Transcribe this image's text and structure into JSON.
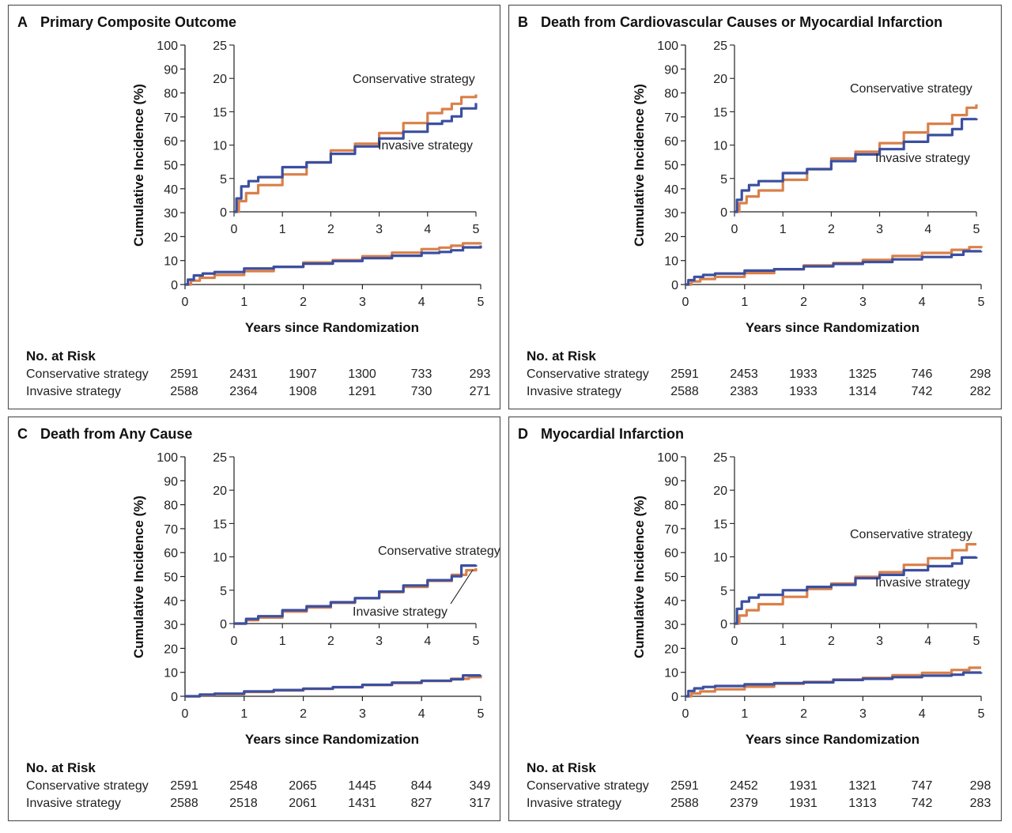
{
  "colors": {
    "conservative": "#D9804A",
    "invasive": "#3B4FA0",
    "frame": "#555555",
    "axis": "#222222"
  },
  "x_axis_label": "Years since Randomization",
  "y_axis_label": "Cumulative Incidence (%)",
  "risk_heading": "No. at Risk",
  "chart_data": [
    {
      "type": "line",
      "panel_letter": "A",
      "title": "Primary Composite Outcome",
      "xlabel": "Years since Randomization",
      "ylabel": "Cumulative Incidence (%)",
      "xlim": [
        0,
        5
      ],
      "ylim": [
        0,
        100
      ],
      "inset": {
        "xlim": [
          0,
          5
        ],
        "ylim": [
          0,
          25
        ],
        "x_ticks": [
          0,
          1,
          2,
          3,
          4,
          5
        ],
        "y_ticks": [
          0,
          5,
          10,
          15,
          20,
          25
        ]
      },
      "x_ticks": [
        0,
        1,
        2,
        3,
        4,
        5
      ],
      "y_ticks": [
        0,
        10,
        20,
        30,
        40,
        50,
        60,
        70,
        80,
        90,
        100
      ],
      "series": [
        {
          "name": "Conservative strategy",
          "x": [
            0,
            0.1,
            0.25,
            0.5,
            1.0,
            1.5,
            2.0,
            2.5,
            3.0,
            3.5,
            4.0,
            4.3,
            4.5,
            4.7,
            5.0
          ],
          "values": [
            0,
            1.6,
            2.8,
            4.0,
            5.6,
            7.4,
            9.2,
            10.2,
            11.8,
            13.3,
            14.8,
            15.4,
            16.2,
            17.2,
            17.6
          ]
        },
        {
          "name": "Invasive strategy",
          "x": [
            0,
            0.05,
            0.15,
            0.3,
            0.5,
            1.0,
            1.5,
            2.0,
            2.5,
            3.0,
            3.5,
            4.0,
            4.3,
            4.5,
            4.7,
            5.0
          ],
          "values": [
            0,
            2.0,
            3.8,
            4.6,
            5.2,
            6.7,
            7.4,
            8.7,
            9.8,
            11.0,
            12.0,
            13.2,
            13.6,
            14.3,
            15.5,
            16.3
          ]
        }
      ],
      "risk_table": {
        "rows": [
          {
            "label": "Conservative strategy",
            "values": [
              "2591",
              "2431",
              "1907",
              "1300",
              "733",
              "293"
            ]
          },
          {
            "label": "Invasive strategy",
            "values": [
              "2588",
              "2364",
              "1908",
              "1291",
              "730",
              "271"
            ]
          }
        ]
      }
    },
    {
      "type": "line",
      "panel_letter": "B",
      "title": "Death from Cardiovascular Causes or Myocardial Infarction",
      "xlabel": "Years since Randomization",
      "ylabel": "Cumulative Incidence (%)",
      "xlim": [
        0,
        5
      ],
      "ylim": [
        0,
        100
      ],
      "inset": {
        "xlim": [
          0,
          5
        ],
        "ylim": [
          0,
          25
        ],
        "x_ticks": [
          0,
          1,
          2,
          3,
          4,
          5
        ],
        "y_ticks": [
          0,
          5,
          10,
          15,
          20,
          25
        ]
      },
      "x_ticks": [
        0,
        1,
        2,
        3,
        4,
        5
      ],
      "y_ticks": [
        0,
        10,
        20,
        30,
        40,
        50,
        60,
        70,
        80,
        90,
        100
      ],
      "series": [
        {
          "name": "Conservative strategy",
          "x": [
            0,
            0.1,
            0.25,
            0.5,
            1.0,
            1.5,
            2.0,
            2.5,
            3.0,
            3.5,
            4.0,
            4.5,
            4.8,
            5.0
          ],
          "values": [
            0,
            1.3,
            2.3,
            3.2,
            4.8,
            6.4,
            8.0,
            9.0,
            10.3,
            11.9,
            13.2,
            14.5,
            15.6,
            16.1
          ]
        },
        {
          "name": "Invasive strategy",
          "x": [
            0,
            0.05,
            0.15,
            0.3,
            0.5,
            1.0,
            1.5,
            2.0,
            2.5,
            3.0,
            3.5,
            4.0,
            4.5,
            4.7,
            5.0
          ],
          "values": [
            0,
            1.8,
            3.2,
            4.0,
            4.6,
            5.8,
            6.4,
            7.6,
            8.6,
            9.4,
            10.5,
            11.5,
            12.4,
            13.9,
            14.0
          ]
        }
      ],
      "risk_table": {
        "rows": [
          {
            "label": "Conservative strategy",
            "values": [
              "2591",
              "2453",
              "1933",
              "1325",
              "746",
              "298"
            ]
          },
          {
            "label": "Invasive strategy",
            "values": [
              "2588",
              "2383",
              "1933",
              "1314",
              "742",
              "282"
            ]
          }
        ]
      }
    },
    {
      "type": "line",
      "panel_letter": "C",
      "title": "Death from Any Cause",
      "xlabel": "Years since Randomization",
      "ylabel": "Cumulative Incidence (%)",
      "xlim": [
        0,
        5
      ],
      "ylim": [
        0,
        100
      ],
      "inset": {
        "xlim": [
          0,
          5
        ],
        "ylim": [
          0,
          25
        ],
        "x_ticks": [
          0,
          1,
          2,
          3,
          4,
          5
        ],
        "y_ticks": [
          0,
          5,
          10,
          15,
          20,
          25
        ]
      },
      "x_ticks": [
        0,
        1,
        2,
        3,
        4,
        5
      ],
      "y_ticks": [
        0,
        10,
        20,
        30,
        40,
        50,
        60,
        70,
        80,
        90,
        100
      ],
      "series": [
        {
          "name": "Conservative strategy",
          "x": [
            0,
            0.25,
            0.5,
            1.0,
            1.5,
            2.0,
            2.5,
            3.0,
            3.5,
            4.0,
            4.5,
            4.8,
            5.0
          ],
          "values": [
            0,
            0.5,
            0.9,
            1.8,
            2.4,
            3.1,
            3.8,
            4.7,
            5.5,
            6.4,
            7.3,
            8.0,
            8.3
          ]
        },
        {
          "name": "Invasive strategy",
          "x": [
            0,
            0.25,
            0.5,
            1.0,
            1.5,
            2.0,
            2.5,
            3.0,
            3.5,
            4.0,
            4.5,
            4.7,
            5.0
          ],
          "values": [
            0,
            0.7,
            1.1,
            2.0,
            2.6,
            3.2,
            3.8,
            4.8,
            5.7,
            6.5,
            7.1,
            8.7,
            8.8
          ]
        }
      ],
      "risk_table": {
        "rows": [
          {
            "label": "Conservative strategy",
            "values": [
              "2591",
              "2548",
              "2065",
              "1445",
              "844",
              "349"
            ]
          },
          {
            "label": "Invasive strategy",
            "values": [
              "2588",
              "2518",
              "2061",
              "1431",
              "827",
              "317"
            ]
          }
        ]
      }
    },
    {
      "type": "line",
      "panel_letter": "D",
      "title": "Myocardial Infarction",
      "xlabel": "Years since Randomization",
      "ylabel": "Cumulative Incidence (%)",
      "xlim": [
        0,
        5
      ],
      "ylim": [
        0,
        100
      ],
      "inset": {
        "xlim": [
          0,
          5
        ],
        "ylim": [
          0,
          25
        ],
        "x_ticks": [
          0,
          1,
          2,
          3,
          4,
          5
        ],
        "y_ticks": [
          0,
          5,
          10,
          15,
          20,
          25
        ]
      },
      "x_ticks": [
        0,
        1,
        2,
        3,
        4,
        5
      ],
      "y_ticks": [
        0,
        10,
        20,
        30,
        40,
        50,
        60,
        70,
        80,
        90,
        100
      ],
      "series": [
        {
          "name": "Conservative strategy",
          "x": [
            0,
            0.1,
            0.25,
            0.5,
            1.0,
            1.5,
            2.0,
            2.5,
            3.0,
            3.5,
            4.0,
            4.5,
            4.8,
            5.0
          ],
          "values": [
            0,
            1.2,
            2.0,
            2.9,
            4.0,
            5.2,
            6.0,
            7.0,
            7.7,
            8.8,
            9.8,
            11.0,
            11.9,
            11.9
          ]
        },
        {
          "name": "Invasive strategy",
          "x": [
            0,
            0.05,
            0.15,
            0.3,
            0.5,
            1.0,
            1.5,
            2.0,
            2.5,
            3.0,
            3.5,
            4.0,
            4.5,
            4.7,
            5.0
          ],
          "values": [
            0,
            2.2,
            3.3,
            3.9,
            4.3,
            5.0,
            5.5,
            5.8,
            6.8,
            7.3,
            8.0,
            8.6,
            9.0,
            9.9,
            10.0
          ]
        }
      ],
      "risk_table": {
        "rows": [
          {
            "label": "Conservative strategy",
            "values": [
              "2591",
              "2452",
              "1931",
              "1321",
              "747",
              "298"
            ]
          },
          {
            "label": "Invasive strategy",
            "values": [
              "2588",
              "2379",
              "1931",
              "1313",
              "742",
              "283"
            ]
          }
        ]
      }
    }
  ]
}
